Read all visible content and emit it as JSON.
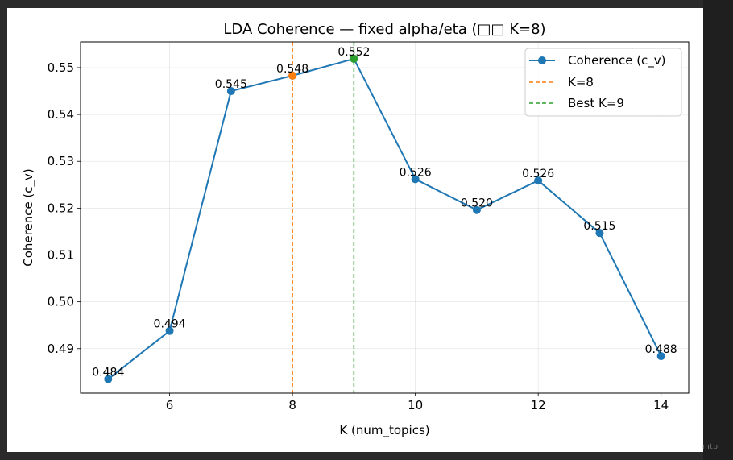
{
  "watermark": "mtb",
  "chart_data": {
    "type": "line",
    "title": "LDA Coherence — fixed alpha/eta (□□ K=8)",
    "xlabel": "K (num_topics)",
    "ylabel": "Coherence (c_v)",
    "xlim": [
      4.55,
      14.45
    ],
    "ylim": [
      0.4805,
      0.5555
    ],
    "xticks": [
      6,
      8,
      10,
      12,
      14
    ],
    "yticks": [
      0.49,
      0.5,
      0.51,
      0.52,
      0.53,
      0.54,
      0.55
    ],
    "ytick_labels": [
      "0.49",
      "0.50",
      "0.51",
      "0.52",
      "0.53",
      "0.54",
      "0.55"
    ],
    "grid": true,
    "series": [
      {
        "name": "Coherence (c_v)",
        "color": "#1f77b4",
        "x": [
          5,
          6,
          7,
          8,
          9,
          10,
          11,
          12,
          13,
          14
        ],
        "y": [
          0.4835,
          0.4938,
          0.545,
          0.5483,
          0.5519,
          0.5262,
          0.5196,
          0.5259,
          0.5147,
          0.4884
        ],
        "labels": [
          "0.484",
          "0.494",
          "0.545",
          "0.548",
          "0.552",
          "0.526",
          "0.520",
          "0.526",
          "0.515",
          "0.488"
        ]
      }
    ],
    "vlines": [
      {
        "name": "K=8",
        "x": 8,
        "color": "#ff7f0e"
      },
      {
        "name": "Best K=9",
        "x": 9,
        "color": "#2ca02c"
      }
    ],
    "highlight_points": [
      {
        "x": 8,
        "y": 0.5483,
        "color": "#ff7f0e"
      },
      {
        "x": 9,
        "y": 0.5519,
        "color": "#2ca02c"
      }
    ],
    "legend": {
      "position": "top-right",
      "entries": [
        "Coherence (c_v)",
        "K=8",
        "Best K=9"
      ]
    }
  }
}
